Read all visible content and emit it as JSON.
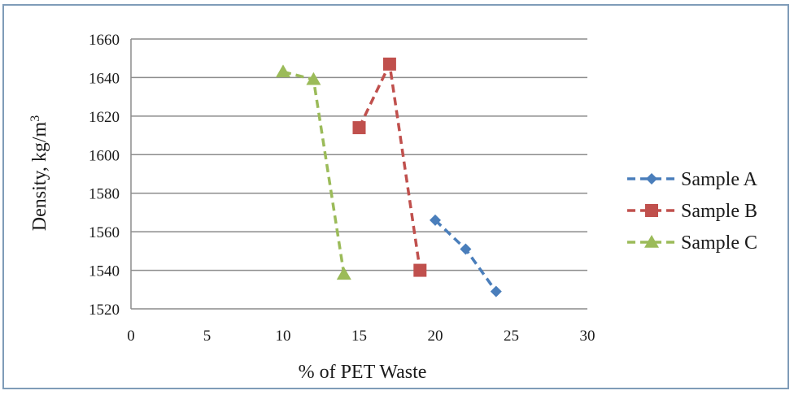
{
  "chart_data": {
    "type": "line",
    "title": "",
    "xlabel": "% of PET Waste",
    "ylabel_main": "Density, kg/m",
    "ylabel_sup": "3",
    "xlim": [
      0,
      30
    ],
    "ylim": [
      1520,
      1660
    ],
    "x_ticks": [
      0,
      5,
      10,
      15,
      20,
      25,
      30
    ],
    "y_ticks": [
      1520,
      1540,
      1560,
      1580,
      1600,
      1620,
      1640,
      1660
    ],
    "grid": "horizontal",
    "legend_position": "right",
    "series": [
      {
        "name": "Sample A",
        "color": "#4a7ebb",
        "marker": "diamond",
        "points": [
          [
            20,
            1566
          ],
          [
            22,
            1551
          ],
          [
            24,
            1529
          ]
        ]
      },
      {
        "name": "Sample B",
        "color": "#c0504d",
        "marker": "square",
        "points": [
          [
            15,
            1614
          ],
          [
            17,
            1647
          ],
          [
            19,
            1540
          ]
        ]
      },
      {
        "name": "Sample C",
        "color": "#9bbb59",
        "marker": "triangle",
        "points": [
          [
            10,
            1643
          ],
          [
            12,
            1639
          ],
          [
            14,
            1538
          ]
        ]
      }
    ]
  }
}
